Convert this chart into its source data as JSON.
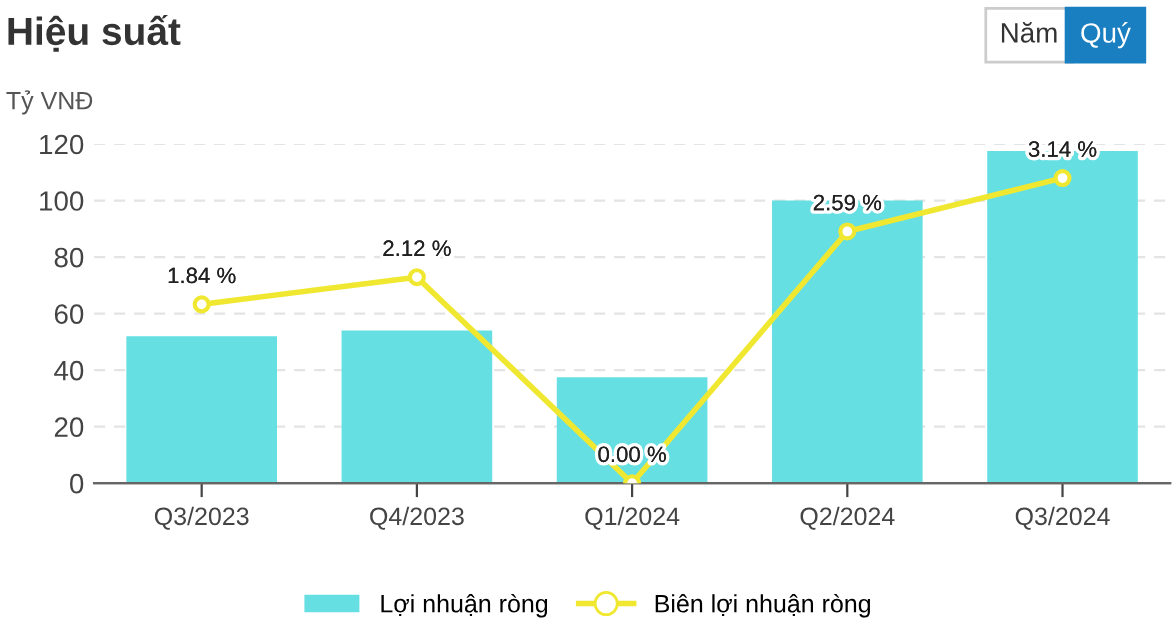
{
  "chart_data": {
    "type": "bar",
    "title": "Hiệu suất",
    "ylabel": "Tỷ VNĐ",
    "annotations": [
      "Năm",
      "Quý"
    ],
    "categories": [
      "Q3/2023",
      "Q4/2023",
      "Q1/2024",
      "Q2/2024",
      "Q3/2024"
    ],
    "series": [
      {
        "name": "Lợi nhuận ròng",
        "color": "#66dfe2",
        "values": [
          52,
          54,
          37.5,
          100,
          117.5
        ]
      },
      {
        "name": "Biên lợi nhuận ròng",
        "type": "line",
        "axis": "y2",
        "color": "#f0e830",
        "marker": "circle",
        "values": [
          1.84,
          2.12,
          0.0,
          2.59,
          3.14
        ],
        "value_labels": [
          "1.84 %",
          "2.12 %",
          "0.00 %",
          "2.59 %",
          "3.14 %"
        ]
      }
    ],
    "ylim": [
      0,
      120
    ],
    "yticks": [
      0,
      20,
      40,
      60,
      80,
      100,
      120
    ],
    "y2lim": [
      0,
      3.49
    ],
    "grid": "y",
    "legend": "bottom"
  }
}
